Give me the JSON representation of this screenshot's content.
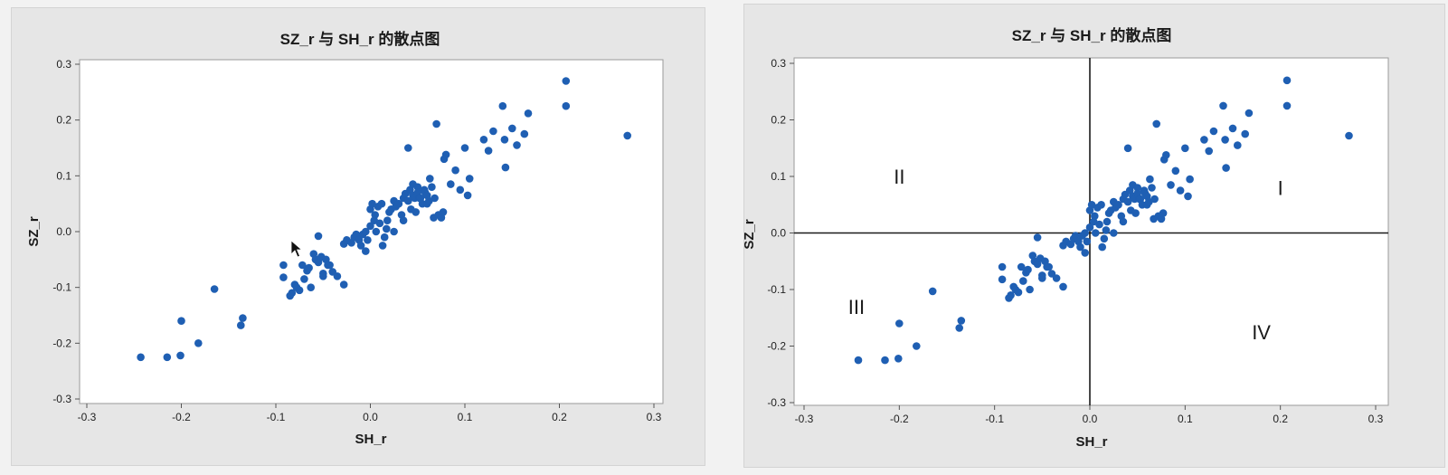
{
  "chart_data": [
    {
      "type": "scatter",
      "title": "SZ_r 与 SH_r 的散点图",
      "xlabel": "SH_r",
      "ylabel": "SZ_r",
      "xlim": [
        -0.3,
        0.3
      ],
      "ylim": [
        -0.3,
        0.3
      ],
      "xticks": [
        "-0.3",
        "-0.2",
        "-0.1",
        "0.0",
        "0.1",
        "0.2",
        "0.3"
      ],
      "yticks": [
        "-0.3",
        "-0.2",
        "-0.1",
        "0.0",
        "0.1",
        "0.2",
        "0.3"
      ],
      "grid": false,
      "point_color": "#1f5fb3",
      "cursor_icon": "mouse-pointer-icon",
      "x": [
        -0.243,
        -0.215,
        -0.201,
        -0.2,
        -0.182,
        -0.165,
        -0.137,
        -0.135,
        -0.092,
        -0.092,
        -0.085,
        -0.083,
        -0.08,
        -0.078,
        -0.075,
        -0.072,
        -0.07,
        -0.067,
        -0.065,
        -0.063,
        -0.06,
        -0.058,
        -0.055,
        -0.055,
        -0.052,
        -0.05,
        -0.05,
        -0.047,
        -0.045,
        -0.043,
        -0.04,
        -0.035,
        -0.028,
        -0.028,
        -0.025,
        -0.02,
        -0.017,
        -0.015,
        -0.012,
        -0.01,
        -0.008,
        -0.005,
        -0.005,
        -0.003,
        0.0,
        0.0,
        0.002,
        0.004,
        0.005,
        0.006,
        0.008,
        0.01,
        0.012,
        0.013,
        0.015,
        0.017,
        0.018,
        0.02,
        0.022,
        0.025,
        0.025,
        0.027,
        0.03,
        0.033,
        0.035,
        0.035,
        0.037,
        0.04,
        0.04,
        0.042,
        0.043,
        0.045,
        0.045,
        0.047,
        0.048,
        0.05,
        0.05,
        0.052,
        0.053,
        0.055,
        0.057,
        0.058,
        0.06,
        0.06,
        0.062,
        0.063,
        0.065,
        0.067,
        0.068,
        0.07,
        0.072,
        0.075,
        0.077,
        0.078,
        0.08,
        0.085,
        0.09,
        0.095,
        0.1,
        0.103,
        0.105,
        0.12,
        0.125,
        0.13,
        0.14,
        0.142,
        0.143,
        0.15,
        0.155,
        0.163,
        0.167,
        0.207,
        0.207,
        0.272
      ],
      "y": [
        -0.225,
        -0.225,
        -0.222,
        -0.16,
        -0.2,
        -0.103,
        -0.168,
        -0.155,
        -0.06,
        -0.082,
        -0.115,
        -0.11,
        -0.095,
        -0.1,
        -0.105,
        -0.06,
        -0.085,
        -0.07,
        -0.065,
        -0.1,
        -0.04,
        -0.05,
        -0.008,
        -0.055,
        -0.045,
        -0.075,
        -0.08,
        -0.05,
        -0.06,
        -0.06,
        -0.072,
        -0.08,
        -0.095,
        -0.022,
        -0.015,
        -0.02,
        -0.01,
        -0.005,
        -0.015,
        -0.025,
        -0.005,
        0.0,
        -0.035,
        -0.015,
        0.01,
        0.04,
        0.05,
        0.02,
        0.03,
        0.0,
        0.045,
        0.015,
        0.05,
        -0.025,
        -0.01,
        0.005,
        0.02,
        0.035,
        0.04,
        0.055,
        0.0,
        0.045,
        0.05,
        0.03,
        0.02,
        0.06,
        0.068,
        0.15,
        0.055,
        0.075,
        0.04,
        0.085,
        0.065,
        0.06,
        0.035,
        0.08,
        0.07,
        0.06,
        0.06,
        0.05,
        0.075,
        0.07,
        0.065,
        0.05,
        0.055,
        0.095,
        0.08,
        0.025,
        0.06,
        0.193,
        0.03,
        0.025,
        0.035,
        0.13,
        0.138,
        0.085,
        0.11,
        0.075,
        0.15,
        0.065,
        0.095,
        0.165,
        0.145,
        0.18,
        0.225,
        0.165,
        0.115,
        0.185,
        0.155,
        0.175,
        0.212,
        0.27,
        0.225,
        0.172
      ]
    },
    {
      "type": "scatter",
      "title": "SZ_r 与 SH_r 的散点图",
      "xlabel": "SH_r",
      "ylabel": "SZ_r",
      "xlim": [
        -0.3,
        0.3
      ],
      "ylim": [
        -0.3,
        0.3
      ],
      "xticks": [
        "-0.3",
        "-0.2",
        "-0.1",
        "0.0",
        "0.1",
        "0.2",
        "0.3"
      ],
      "yticks": [
        "-0.3",
        "-0.2",
        "-0.1",
        "0.0",
        "0.1",
        "0.2",
        "0.3"
      ],
      "grid": false,
      "point_color": "#1f5fb3",
      "reference_lines": {
        "x": 0.0,
        "y": 0.0
      },
      "quadrant_labels": [
        {
          "text": "I",
          "x": 0.2,
          "y": 0.08
        },
        {
          "text": "II",
          "x": -0.2,
          "y": 0.1
        },
        {
          "text": "III",
          "x": -0.245,
          "y": -0.13
        },
        {
          "text": "IV",
          "x": 0.18,
          "y": -0.175
        }
      ],
      "x": [
        -0.243,
        -0.215,
        -0.201,
        -0.2,
        -0.182,
        -0.165,
        -0.137,
        -0.135,
        -0.092,
        -0.092,
        -0.085,
        -0.083,
        -0.08,
        -0.078,
        -0.075,
        -0.072,
        -0.07,
        -0.067,
        -0.065,
        -0.063,
        -0.06,
        -0.058,
        -0.055,
        -0.055,
        -0.052,
        -0.05,
        -0.05,
        -0.047,
        -0.045,
        -0.043,
        -0.04,
        -0.035,
        -0.028,
        -0.028,
        -0.025,
        -0.02,
        -0.017,
        -0.015,
        -0.012,
        -0.01,
        -0.008,
        -0.005,
        -0.005,
        -0.003,
        0.0,
        0.0,
        0.002,
        0.004,
        0.005,
        0.006,
        0.008,
        0.01,
        0.012,
        0.013,
        0.015,
        0.017,
        0.018,
        0.02,
        0.022,
        0.025,
        0.025,
        0.027,
        0.03,
        0.033,
        0.035,
        0.035,
        0.037,
        0.04,
        0.04,
        0.042,
        0.043,
        0.045,
        0.045,
        0.047,
        0.048,
        0.05,
        0.05,
        0.052,
        0.053,
        0.055,
        0.057,
        0.058,
        0.06,
        0.06,
        0.062,
        0.063,
        0.065,
        0.067,
        0.068,
        0.07,
        0.072,
        0.075,
        0.077,
        0.078,
        0.08,
        0.085,
        0.09,
        0.095,
        0.1,
        0.103,
        0.105,
        0.12,
        0.125,
        0.13,
        0.14,
        0.142,
        0.143,
        0.15,
        0.155,
        0.163,
        0.167,
        0.207,
        0.207,
        0.272
      ],
      "y": [
        -0.225,
        -0.225,
        -0.222,
        -0.16,
        -0.2,
        -0.103,
        -0.168,
        -0.155,
        -0.06,
        -0.082,
        -0.115,
        -0.11,
        -0.095,
        -0.1,
        -0.105,
        -0.06,
        -0.085,
        -0.07,
        -0.065,
        -0.1,
        -0.04,
        -0.05,
        -0.008,
        -0.055,
        -0.045,
        -0.075,
        -0.08,
        -0.05,
        -0.06,
        -0.06,
        -0.072,
        -0.08,
        -0.095,
        -0.022,
        -0.015,
        -0.02,
        -0.01,
        -0.005,
        -0.015,
        -0.025,
        -0.005,
        0.0,
        -0.035,
        -0.015,
        0.01,
        0.04,
        0.05,
        0.02,
        0.03,
        0.0,
        0.045,
        0.015,
        0.05,
        -0.025,
        -0.01,
        0.005,
        0.02,
        0.035,
        0.04,
        0.055,
        0.0,
        0.045,
        0.05,
        0.03,
        0.02,
        0.06,
        0.068,
        0.15,
        0.055,
        0.075,
        0.04,
        0.085,
        0.065,
        0.06,
        0.035,
        0.08,
        0.07,
        0.06,
        0.06,
        0.05,
        0.075,
        0.07,
        0.065,
        0.05,
        0.055,
        0.095,
        0.08,
        0.025,
        0.06,
        0.193,
        0.03,
        0.025,
        0.035,
        0.13,
        0.138,
        0.085,
        0.11,
        0.075,
        0.15,
        0.065,
        0.095,
        0.165,
        0.145,
        0.18,
        0.225,
        0.165,
        0.115,
        0.185,
        0.155,
        0.175,
        0.212,
        0.27,
        0.225,
        0.172
      ]
    }
  ]
}
